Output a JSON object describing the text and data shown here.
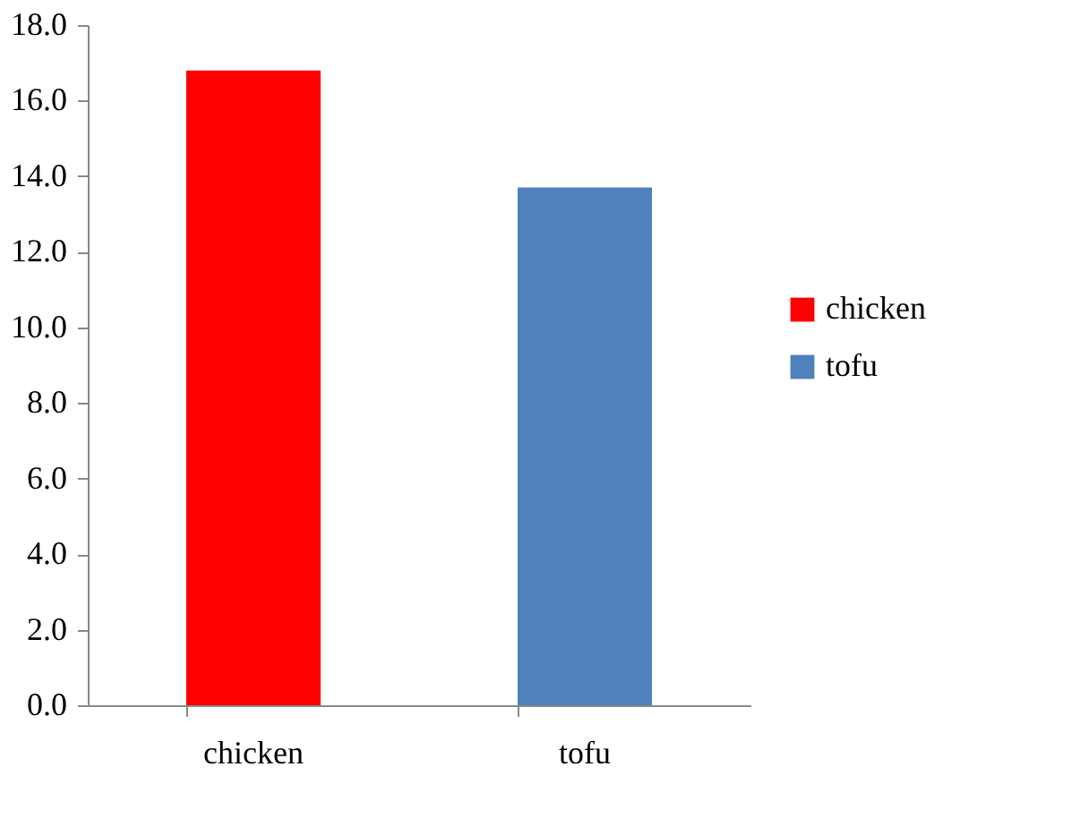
{
  "chart_data": {
    "type": "bar",
    "categories": [
      "chicken",
      "tofu"
    ],
    "series": [
      {
        "name": "chicken",
        "color": "#ff0000",
        "values": [
          16.8,
          null
        ]
      },
      {
        "name": "tofu",
        "color": "#4f81bd",
        "values": [
          null,
          13.7
        ]
      }
    ],
    "ylim": [
      0,
      18
    ],
    "yticks": [
      {
        "value": 0,
        "label": "0.0"
      },
      {
        "value": 2,
        "label": "2.0"
      },
      {
        "value": 4,
        "label": "4.0"
      },
      {
        "value": 6,
        "label": "6.0"
      },
      {
        "value": 8,
        "label": "8.0"
      },
      {
        "value": 10,
        "label": "10.0"
      },
      {
        "value": 12,
        "label": "12.0"
      },
      {
        "value": 14,
        "label": "14.0"
      },
      {
        "value": 16,
        "label": "16.0"
      },
      {
        "value": 18,
        "label": "18.0"
      }
    ],
    "legend": "right"
  }
}
